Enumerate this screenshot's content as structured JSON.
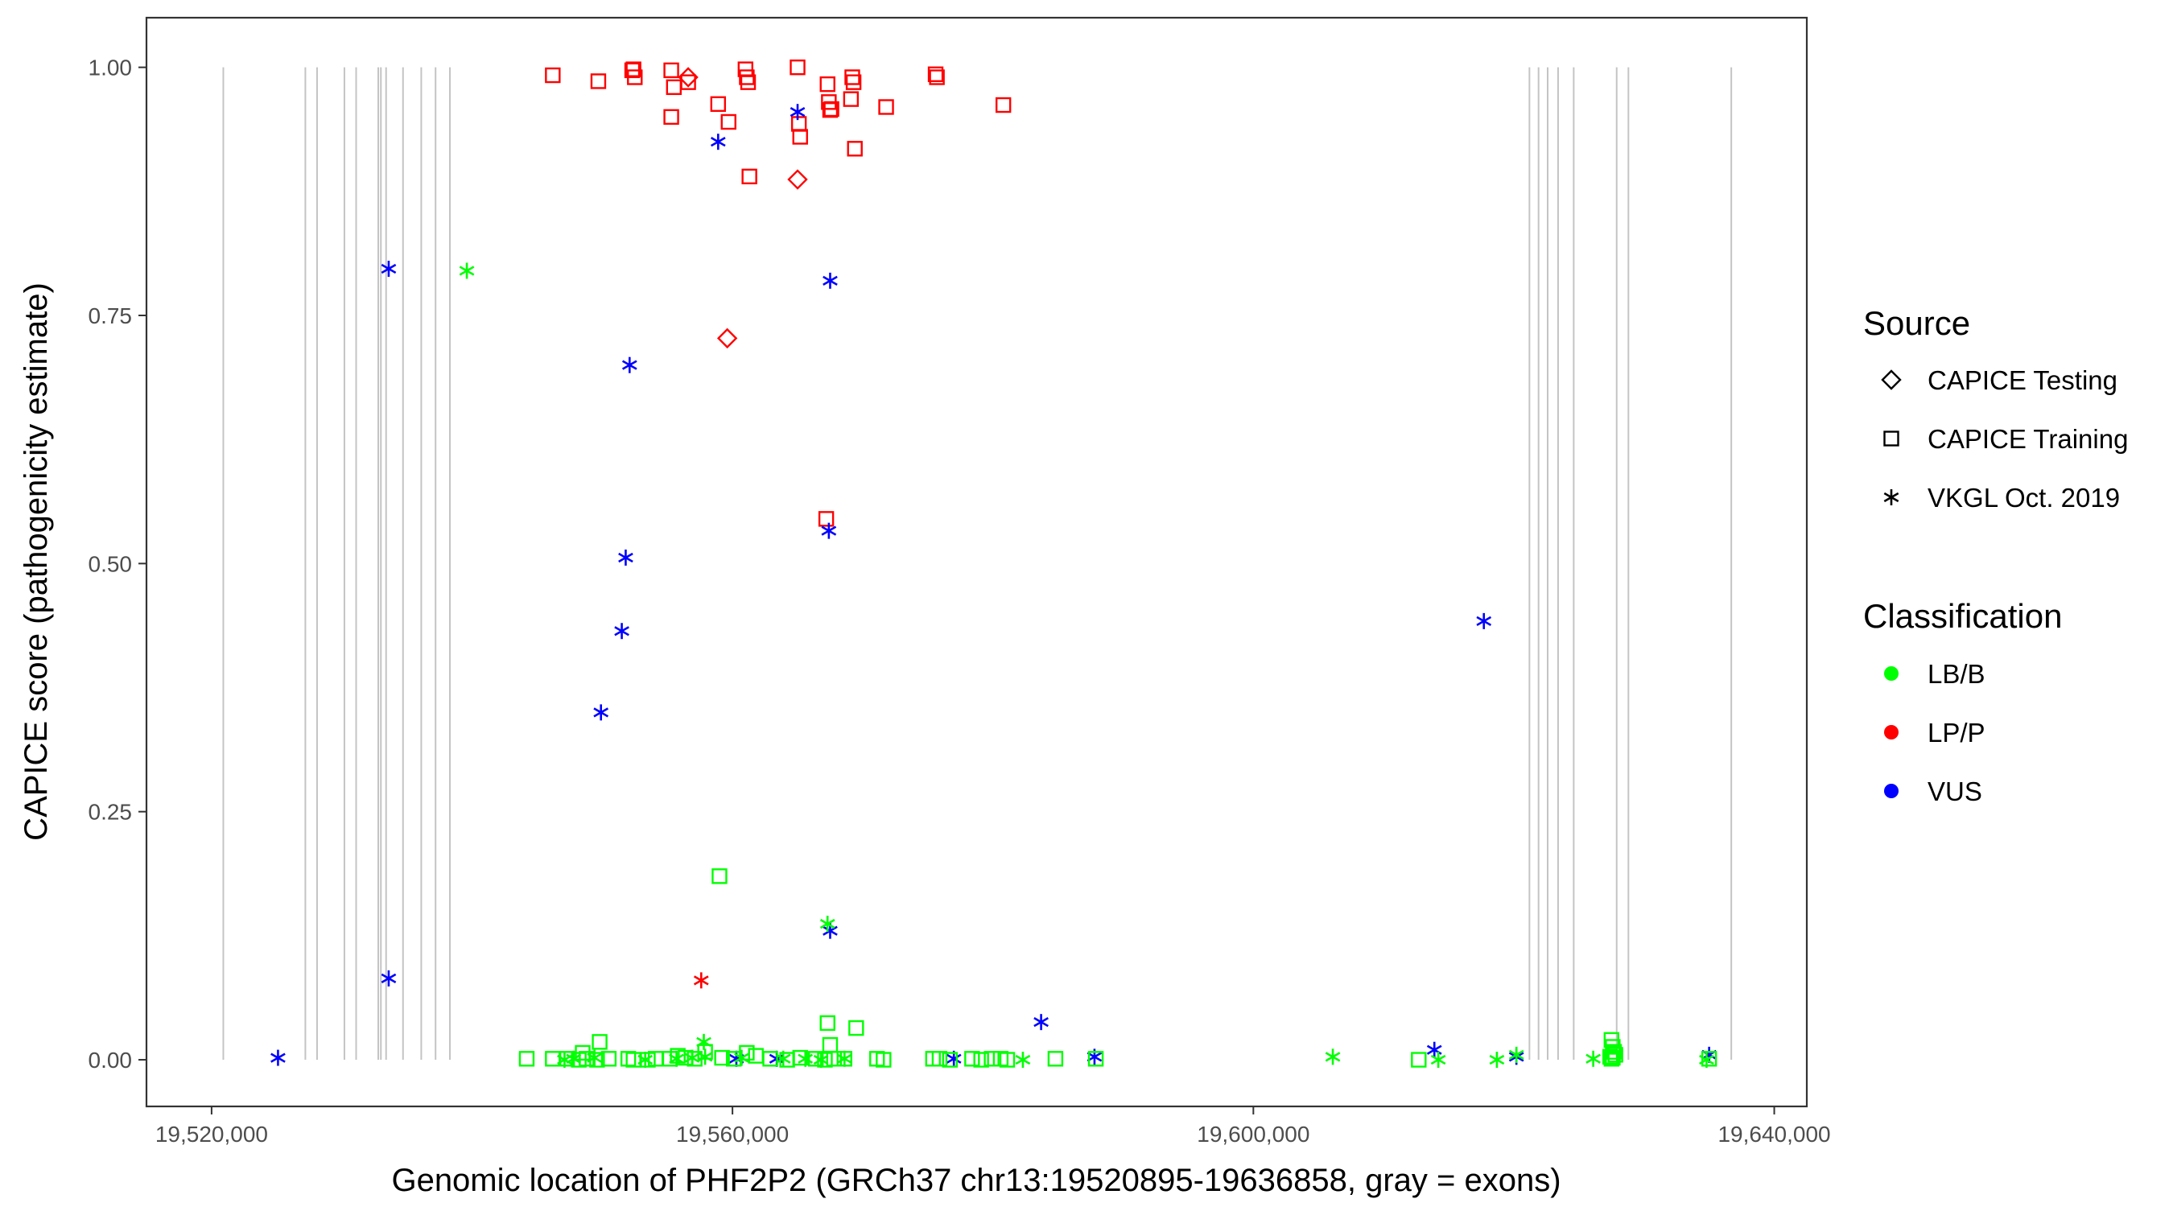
{
  "chart_data": {
    "type": "scatter",
    "title": "",
    "xlabel": "Genomic location of PHF2P2 (GRCh37 chr13:19520895-19636858, gray = exons)",
    "ylabel": "CAPICE score (pathogenicity estimate)",
    "xlim": [
      19515000,
      19642500
    ],
    "ylim": [
      -0.047,
      1.05
    ],
    "x_ticks": [
      19520000,
      19560000,
      19600000,
      19640000
    ],
    "x_tick_labels": [
      "19,520,000",
      "19,560,000",
      "19,600,000",
      "19,640,000"
    ],
    "y_ticks": [
      0,
      0.25,
      0.5,
      0.75,
      1
    ],
    "y_tick_labels": [
      "0.00",
      "0.25",
      "0.50",
      "0.75",
      "1.00"
    ],
    "grid": false,
    "exon_lines": [
      19520900,
      19527200,
      19528100,
      19530200,
      19531100,
      19532800,
      19533000,
      19533400,
      19534700,
      19536100,
      19537200,
      19538300,
      19621200,
      19621900,
      19622600,
      19623400,
      19624600,
      19627900,
      19628800,
      19636700
    ],
    "legend": {
      "placement": "right",
      "source_title": "Source",
      "source_items": [
        {
          "label": "CAPICE Testing",
          "shape": "diamond"
        },
        {
          "label": "CAPICE Training",
          "shape": "square"
        },
        {
          "label": "VKGL Oct. 2019",
          "shape": "asterisk"
        }
      ],
      "class_title": "Classification",
      "class_items": [
        {
          "label": "LB/B",
          "color": "#00ff00"
        },
        {
          "label": "LP/P",
          "color": "#ff0000"
        },
        {
          "label": "VUS",
          "color": "#0000ff"
        }
      ]
    },
    "series": [
      {
        "name": "LP/P",
        "marker": "square",
        "color": "#ff0000",
        "x": [
          19546200,
          19549700,
          19552300,
          19552500,
          19552400,
          19555300,
          19555500,
          19555300,
          19556600,
          19558900,
          19559700,
          19561000,
          19561100,
          19561200,
          19561300,
          19565000,
          19565100,
          19565200,
          19567300,
          19567400,
          19567500,
          19567600,
          19569200,
          19569300,
          19569100,
          19569400,
          19571800,
          19575600,
          19575700,
          19580800,
          19567200
        ],
        "y": [
          0.992,
          0.986,
          0.997,
          0.99,
          0.998,
          0.997,
          0.98,
          0.95,
          0.985,
          0.963,
          0.945,
          0.998,
          0.99,
          0.985,
          0.89,
          1.0,
          0.943,
          0.93,
          0.983,
          0.965,
          0.957,
          0.958,
          0.99,
          0.985,
          0.968,
          0.918,
          0.96,
          0.993,
          0.99,
          0.962,
          0.545
        ]
      },
      {
        "name": "LP/P",
        "marker": "diamond",
        "color": "#ff0000",
        "x": [
          19556600,
          19565000,
          19559600
        ],
        "y": [
          0.99,
          0.887,
          0.727
        ]
      },
      {
        "name": "LP/P",
        "marker": "asterisk",
        "color": "#ff0000",
        "x": [
          19557600
        ],
        "y": [
          0.08
        ]
      },
      {
        "name": "VUS",
        "marker": "asterisk",
        "color": "#0000ff",
        "x": [
          19525100,
          19533600,
          19533600,
          19552100,
          19551800,
          19551500,
          19549900,
          19558900,
          19565000,
          19567500,
          19567400,
          19567500,
          19560300,
          19563400,
          19577000,
          19583700,
          19587800,
          19613900,
          19617700,
          19620200,
          19635000
        ],
        "y": [
          0.002,
          0.797,
          0.082,
          0.7,
          0.506,
          0.432,
          0.35,
          0.925,
          0.955,
          0.785,
          0.533,
          0.13,
          0.001,
          0.001,
          0.001,
          0.038,
          0.003,
          0.01,
          0.442,
          0.003,
          0.005
        ]
      },
      {
        "name": "LB/B",
        "marker": "asterisk",
        "color": "#00ff00",
        "x": [
          19539600,
          19567300,
          19547100,
          19547800,
          19549400,
          19553300,
          19555700,
          19556900,
          19557800,
          19557900,
          19560700,
          19563900,
          19565600,
          19566800,
          19568600,
          19582300,
          19606100,
          19614200,
          19618700,
          19620200,
          19626100,
          19634800
        ],
        "y": [
          0.795,
          0.137,
          0.0,
          0.001,
          0.002,
          0.0,
          0.001,
          0.002,
          0.018,
          0.003,
          0.002,
          0.001,
          0.001,
          0.0,
          0.001,
          0.0,
          0.003,
          0.0,
          0.0,
          0.005,
          0.001,
          0.0
        ],
        "name_visible": true
      },
      {
        "name": "LB/B",
        "marker": "square",
        "color": "#00ff00",
        "x": [
          19559000,
          19567300,
          19567500,
          19569500,
          19549800,
          19548500,
          19544200,
          19546200,
          19547300,
          19548200,
          19548800,
          19549600,
          19550500,
          19552000,
          19552400,
          19553500,
          19554100,
          19555200,
          19555800,
          19556400,
          19557100,
          19557900,
          19559200,
          19560100,
          19561100,
          19561800,
          19562900,
          19564200,
          19565200,
          19566400,
          19567100,
          19567800,
          19568600,
          19571100,
          19571600,
          19575400,
          19575900,
          19576700,
          19578400,
          19579100,
          19579900,
          19580600,
          19581100,
          19584800,
          19587900,
          19612700,
          19627500,
          19627600,
          19627700,
          19627800,
          19627400,
          19627600,
          19627500,
          19635000
        ],
        "y": [
          0.185,
          0.037,
          0.015,
          0.032,
          0.018,
          0.007,
          0.001,
          0.001,
          0.001,
          0.0,
          0.001,
          0.0,
          0.001,
          0.001,
          0.0,
          0.0,
          0.001,
          0.001,
          0.004,
          0.002,
          0.001,
          0.008,
          0.002,
          0.001,
          0.007,
          0.004,
          0.001,
          0.0,
          0.002,
          0.001,
          0.0,
          0.001,
          0.001,
          0.001,
          0.0,
          0.001,
          0.001,
          0.0,
          0.001,
          0.0,
          0.001,
          0.001,
          0.0,
          0.001,
          0.001,
          0.0,
          0.02,
          0.013,
          0.008,
          0.005,
          0.003,
          0.002,
          0.001,
          0.001
        ]
      }
    ]
  }
}
